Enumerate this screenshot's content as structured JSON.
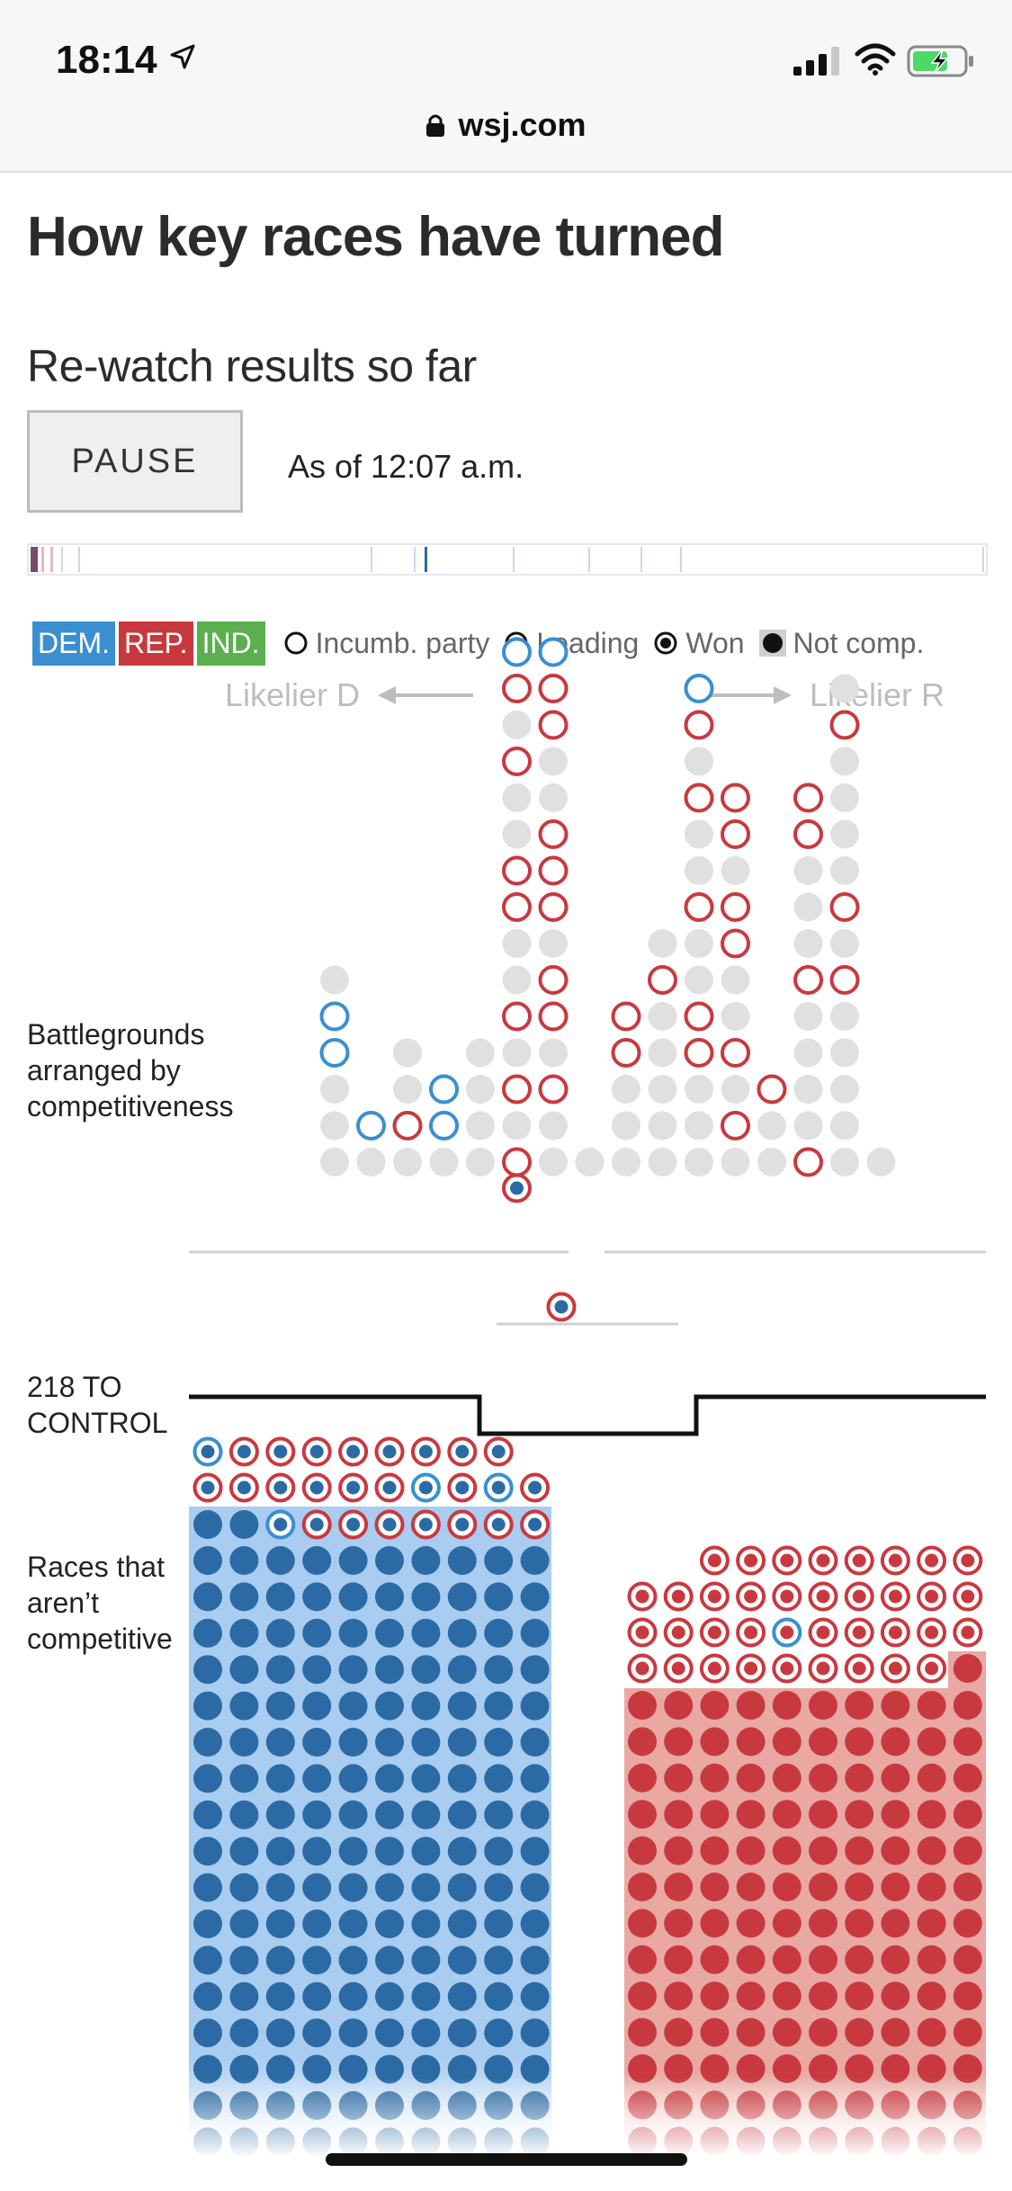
{
  "status": {
    "time": "18:14"
  },
  "browser": {
    "url": "wsj.com"
  },
  "page": {
    "headline": "How key races have turned",
    "subhead": "Re-watch results so far",
    "pause_label": "PAUSE",
    "as_of": "As of 12:07 a.m."
  },
  "legend": {
    "dem": "DEM.",
    "rep": "REP.",
    "ind": "IND.",
    "incumbent": "Incumb. party",
    "leading": "Leading",
    "won": "Won",
    "not_comp": "Not comp."
  },
  "direction": {
    "left": "Likelier D",
    "right": "Likelier R"
  },
  "labels": {
    "battlegrounds": "Battlegrounds arranged by competitiveness",
    "control": "218 TO CONTROL",
    "noncompetitive": "Races that aren’t competitive"
  },
  "colors": {
    "dem": "#3a8fd0",
    "dem_dark": "#2b6aa4",
    "rep": "#c8393f",
    "ind": "#5ab04c",
    "neutral": "#e0e0e0"
  }
}
